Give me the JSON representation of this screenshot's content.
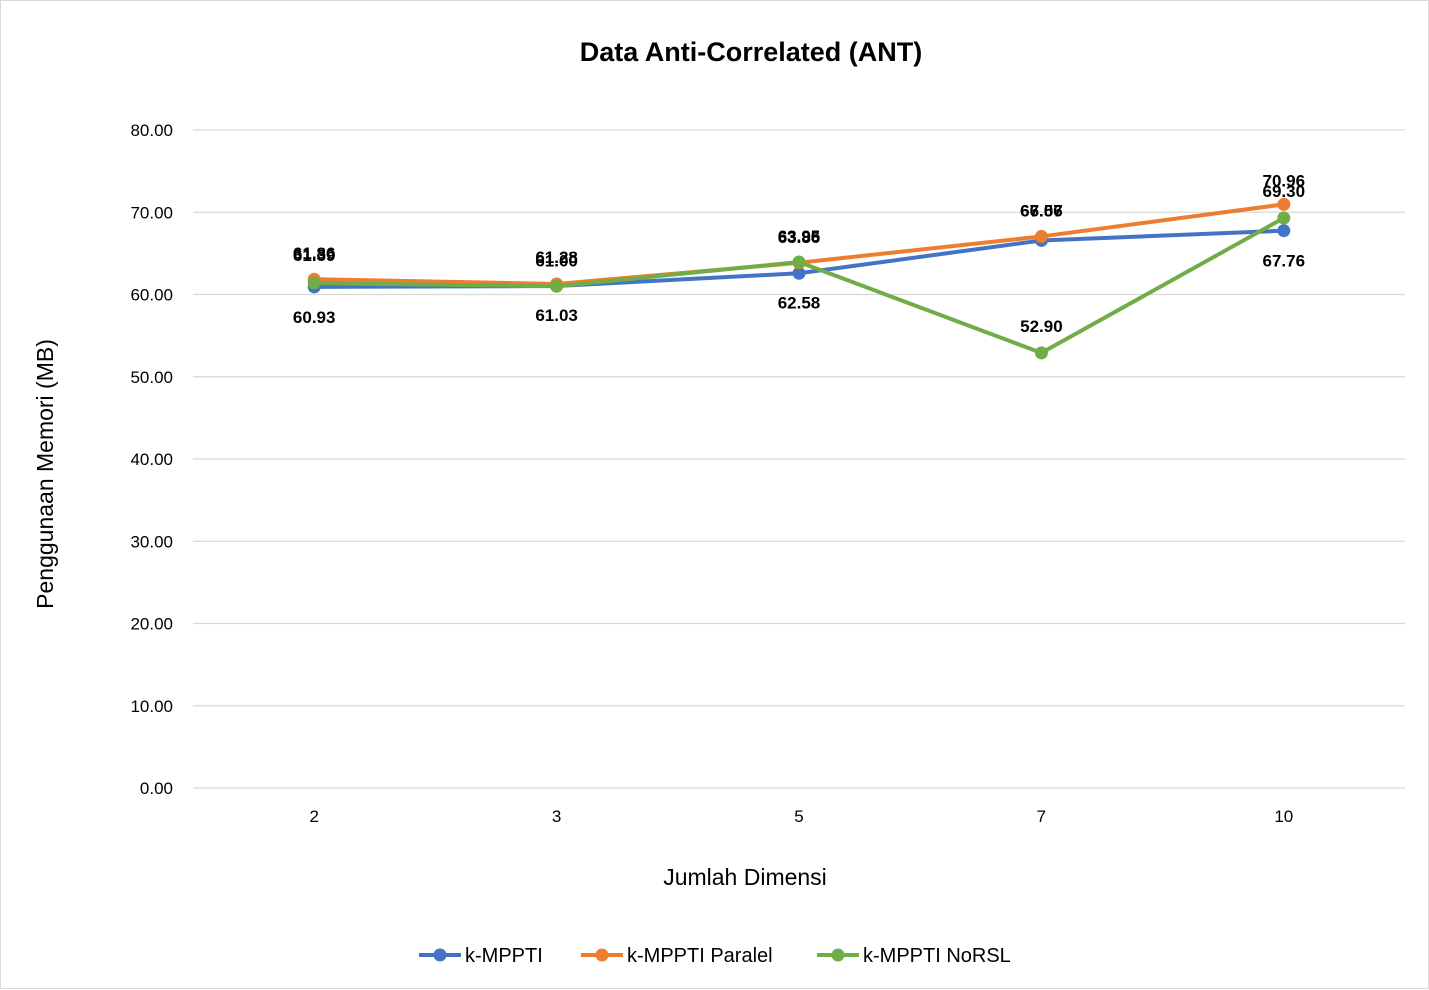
{
  "chart_data": {
    "type": "line",
    "title": "Data Anti-Correlated (ANT)",
    "xlabel": "Jumlah Dimensi",
    "ylabel": "Penggunaan Memori (MB)",
    "categories": [
      "2",
      "3",
      "5",
      "7",
      "10"
    ],
    "ylim": [
      0,
      80
    ],
    "yticks": [
      "0.00",
      "10.00",
      "20.00",
      "30.00",
      "40.00",
      "50.00",
      "60.00",
      "70.00",
      "80.00"
    ],
    "grid": true,
    "legend_position": "bottom",
    "series": [
      {
        "name": "k-MPPTI",
        "color": "#4472c4",
        "values": [
          60.93,
          61.03,
          62.58,
          66.57,
          67.76
        ],
        "labels": [
          "60.93",
          "61.03",
          "62.58",
          "66.57",
          "67.76"
        ]
      },
      {
        "name": "k-MPPTI Paralel",
        "color": "#ed7d31",
        "values": [
          61.86,
          61.28,
          63.86,
          67.06,
          70.96
        ],
        "labels": [
          "61.86",
          "61.28",
          "63.86",
          "67.06",
          "70.96"
        ]
      },
      {
        "name": "k-MPPTI NoRSL",
        "color": "#70ad47",
        "values": [
          61.39,
          61.0,
          63.95,
          52.9,
          69.3
        ],
        "labels": [
          "61.39",
          "61.00",
          "63.95",
          "52.90",
          "69.30"
        ]
      }
    ]
  }
}
